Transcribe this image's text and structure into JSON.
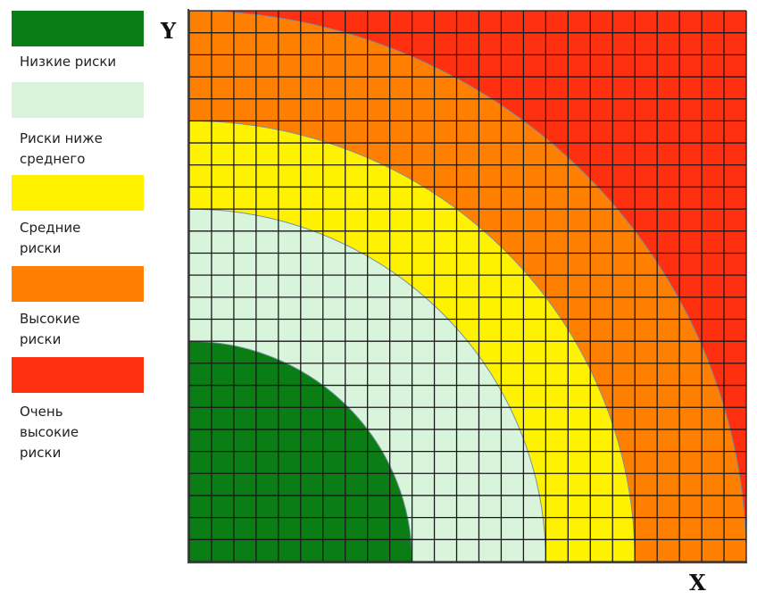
{
  "axes": {
    "x_label": "X",
    "y_label": "Y"
  },
  "legend": [
    {
      "label": "Низкие риски",
      "color": "#0a7d14"
    },
    {
      "label": "Риски ниже\nсреднего",
      "color": "#d8f5dc"
    },
    {
      "label": "Средние\nриски",
      "color": "#fff200"
    },
    {
      "label": "Высокие\nриски",
      "color": "#ff8000"
    },
    {
      "label": "Очень\nвысокие\nриски",
      "color": "#ff3010"
    }
  ],
  "zones": [
    {
      "name": "Низкие риски",
      "color": "#0a7d14",
      "outer_radius_cells": 10
    },
    {
      "name": "Риски ниже среднего",
      "color": "#d8f5dc",
      "outer_radius_cells": 16
    },
    {
      "name": "Средние риски",
      "color": "#fff200",
      "outer_radius_cells": 20
    },
    {
      "name": "Высокие риски",
      "color": "#ff8000",
      "outer_radius_cells": 25
    },
    {
      "name": "Очень высокие риски",
      "color": "#ff3010",
      "outer_radius_cells": null
    }
  ],
  "grid": {
    "columns": 25,
    "rows": 25,
    "line_color": "#1a1a1a"
  }
}
